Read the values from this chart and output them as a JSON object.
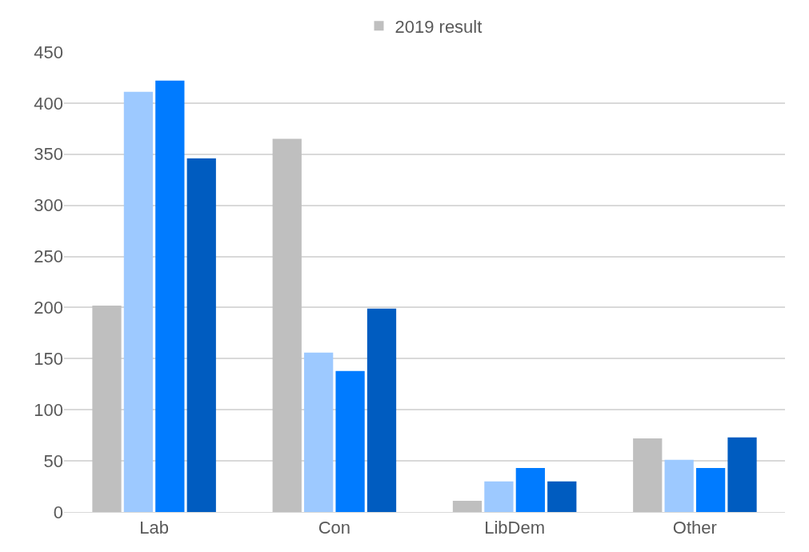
{
  "chart_data": {
    "type": "bar",
    "categories": [
      "Lab",
      "Con",
      "LibDem",
      "Other"
    ],
    "series": [
      {
        "name": "2019 result",
        "color": "#bfbfbf",
        "values": [
          202,
          365,
          11,
          72
        ]
      },
      {
        "color": "#9dc9ff",
        "values": [
          411,
          156,
          30,
          51
        ]
      },
      {
        "color": "#007bff",
        "values": [
          422,
          138,
          43,
          43
        ]
      },
      {
        "color": "#005cc0",
        "values": [
          346,
          199,
          30,
          73
        ]
      }
    ],
    "ylim": [
      0,
      450
    ],
    "yticks": [
      0,
      50,
      100,
      150,
      200,
      250,
      300,
      350,
      400,
      450
    ],
    "grid": "y",
    "legend": "top"
  }
}
